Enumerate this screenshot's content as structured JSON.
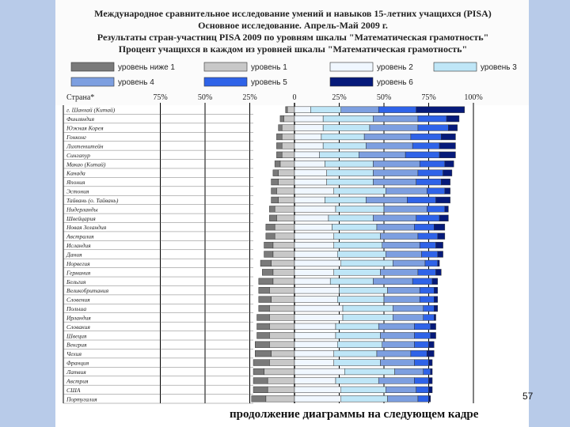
{
  "header": {
    "line1": "Международное сравнительное исследование умений и навыков 15-летних учащихся (PISA)",
    "line2": "Основное исследование. Апрель-Май 2009 г.",
    "line3": "Результаты стран-участниц PISA 2009 по уровням шкалы \"Математическая грамотность\"",
    "line4": "Процент учащихся в каждом из уровней шкалы \"Математическая грамотность\""
  },
  "page_number": "57",
  "footer_caption": "продолжение диаграммы на следующем кадре",
  "colors": {
    "below1": "#7a7a7a",
    "level1": "#c8c8c8",
    "level2": "#f0f7ff",
    "level3": "#bfe6f7",
    "level4": "#7d9fe0",
    "level5": "#2f63e8",
    "level6": "#061a7a"
  },
  "chart_data": {
    "type": "bar",
    "stacked": "diverging",
    "category_label": "Страна*",
    "legend": [
      {
        "key": "below1",
        "label": "уровень ниже 1"
      },
      {
        "key": "level1",
        "label": "уровень 1"
      },
      {
        "key": "level2",
        "label": "уровень 2"
      },
      {
        "key": "level3",
        "label": "уровень 3"
      },
      {
        "key": "level4",
        "label": "уровень 4"
      },
      {
        "key": "level5",
        "label": "уровень 5"
      },
      {
        "key": "level6",
        "label": "уровень 6"
      }
    ],
    "legend_position": "top",
    "x_ticks": [
      "75%",
      "50%",
      "25%",
      "0",
      "25%",
      "50%",
      "75%",
      "100%"
    ],
    "x_tick_values": [
      -75,
      -50,
      -25,
      0,
      25,
      50,
      75,
      100
    ],
    "xlim": [
      -100,
      100
    ],
    "grid": true,
    "categories": [
      "г. Шанхай (Китай)",
      "Финляндия",
      "Южная Корея",
      "Гонконг",
      "Лихтенштейн",
      "Сингапур",
      "Макао (Китай)",
      "Канада",
      "Япония",
      "Эстония",
      "Тайвань (о. Тайвань)",
      "Нидерланды",
      "Швейцария",
      "Новая Зеландия",
      "Австралия",
      "Исландия",
      "Дания",
      "Норвегия",
      "Германия",
      "Бельгия",
      "Великобритания",
      "Словения",
      "Польша",
      "Ирландия",
      "Словакия",
      "Швеция",
      "Венгрия",
      "Чехия",
      "Франция",
      "Латвия",
      "Австрия",
      "США",
      "Португалия"
    ],
    "series": [
      {
        "key": "below1",
        "values": [
          1,
          2,
          2,
          3,
          3,
          3,
          3,
          3,
          4,
          3,
          4,
          3,
          4,
          5,
          5,
          5,
          5,
          6,
          6,
          8,
          6,
          7,
          6,
          7,
          7,
          7,
          8,
          9,
          9,
          6,
          8,
          8,
          8
        ]
      },
      {
        "key": "level1",
        "values": [
          4,
          6,
          7,
          7,
          7,
          7,
          8,
          9,
          9,
          10,
          9,
          11,
          10,
          11,
          11,
          12,
          12,
          13,
          12,
          12,
          14,
          13,
          14,
          14,
          14,
          14,
          14,
          13,
          14,
          17,
          15,
          15,
          16
        ]
      },
      {
        "key": "level2",
        "values": [
          9,
          16,
          16,
          15,
          16,
          14,
          17,
          18,
          18,
          22,
          17,
          23,
          19,
          21,
          22,
          22,
          24,
          26,
          22,
          20,
          25,
          24,
          27,
          27,
          23,
          23,
          24,
          22,
          22,
          28,
          23,
          26,
          26
        ]
      },
      {
        "key": "level3",
        "values": [
          17,
          28,
          26,
          24,
          24,
          22,
          27,
          26,
          26,
          29,
          23,
          27,
          25,
          25,
          26,
          27,
          27,
          29,
          26,
          24,
          27,
          26,
          28,
          28,
          24,
          25,
          25,
          24,
          26,
          28,
          24,
          25,
          26
        ]
      },
      {
        "key": "level4",
        "values": [
          21,
          25,
          27,
          26,
          26,
          26,
          26,
          25,
          24,
          23,
          23,
          24,
          24,
          21,
          21,
          21,
          20,
          18,
          21,
          22,
          18,
          20,
          17,
          17,
          20,
          19,
          18,
          19,
          19,
          16,
          20,
          17,
          17
        ]
      },
      {
        "key": "level5",
        "values": [
          21,
          16,
          17,
          17,
          15,
          19,
          14,
          14,
          14,
          10,
          16,
          10,
          13,
          11,
          11,
          9,
          9,
          7,
          10,
          11,
          8,
          8,
          6,
          6,
          9,
          9,
          8,
          9,
          8,
          4,
          8,
          7,
          6
        ]
      },
      {
        "key": "level6",
        "values": [
          27,
          7,
          5,
          8,
          9,
          9,
          5,
          5,
          5,
          3,
          8,
          2,
          5,
          6,
          4,
          4,
          3,
          1,
          3,
          3,
          2,
          2,
          2,
          1,
          3,
          3,
          3,
          4,
          2,
          1,
          2,
          2,
          1
        ]
      }
    ]
  }
}
